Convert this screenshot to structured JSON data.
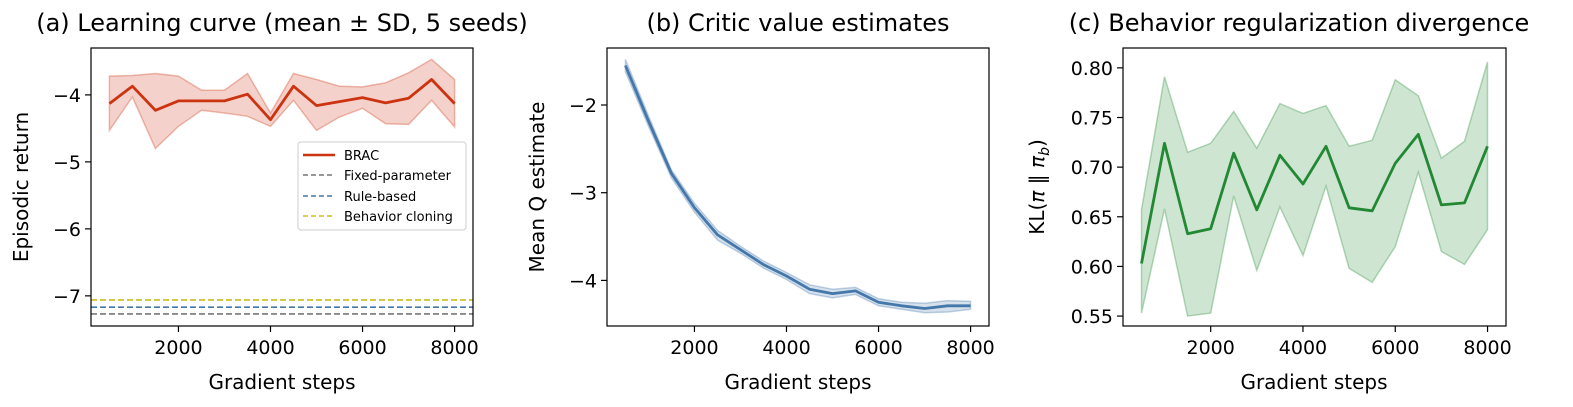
{
  "chart_data": [
    {
      "type": "line",
      "title": "(a) Learning curve (mean ± SD, 5 seeds)",
      "xlabel": "Gradient steps",
      "ylabel": "Episodic return",
      "xlim": [
        100,
        8400
      ],
      "ylim": [
        -7.45,
        -3.3
      ],
      "xticks": [
        2000,
        4000,
        6000,
        8000
      ],
      "xtick_labels": [
        "2000",
        "4000",
        "6000",
        "8000"
      ],
      "yticks": [
        -7,
        -6,
        -5,
        -4
      ],
      "ytick_labels": [
        "−7",
        "−6",
        "−5",
        "−4"
      ],
      "grid": false,
      "legend_position": "center-right",
      "x": [
        500,
        1000,
        1500,
        2000,
        2500,
        3000,
        3500,
        4000,
        4500,
        5000,
        5500,
        6000,
        6500,
        7000,
        7500,
        8000
      ],
      "series": [
        {
          "name": "BRAC",
          "color": "#cc3311",
          "style": "solid",
          "values": [
            -4.13,
            -3.87,
            -4.23,
            -4.09,
            -4.09,
            -4.09,
            -3.99,
            -4.37,
            -3.87,
            -4.16,
            -4.1,
            -4.04,
            -4.12,
            -4.05,
            -3.77,
            -4.13
          ],
          "band_upper": [
            -3.72,
            -3.71,
            -3.68,
            -3.72,
            -3.93,
            -3.93,
            -3.68,
            -4.27,
            -3.68,
            -3.77,
            -3.87,
            -3.88,
            -3.82,
            -3.67,
            -3.47,
            -3.77
          ],
          "band_lower": [
            -4.53,
            -4.03,
            -4.8,
            -4.47,
            -4.23,
            -4.27,
            -4.32,
            -4.47,
            -4.08,
            -4.53,
            -4.33,
            -4.2,
            -4.43,
            -4.44,
            -4.08,
            -4.48
          ]
        },
        {
          "name": "Fixed-parameter",
          "color": "#777777",
          "style": "dashed",
          "hline": -7.27
        },
        {
          "name": "Rule-based",
          "color": "#4477aa",
          "style": "dashed",
          "hline": -7.17
        },
        {
          "name": "Behavior cloning",
          "color": "#ccbb22",
          "style": "dashed",
          "hline": -7.06
        }
      ]
    },
    {
      "type": "line",
      "title": "(b) Critic value estimates",
      "xlabel": "Gradient steps",
      "ylabel": "Mean Q estimate",
      "xlim": [
        100,
        8400
      ],
      "ylim": [
        -4.52,
        -1.35
      ],
      "xticks": [
        2000,
        4000,
        6000,
        8000
      ],
      "xtick_labels": [
        "2000",
        "4000",
        "6000",
        "8000"
      ],
      "yticks": [
        -4,
        -3,
        -2
      ],
      "ytick_labels": [
        "−4",
        "−3",
        "−2"
      ],
      "grid": false,
      "x": [
        500,
        1000,
        1500,
        2000,
        2500,
        3000,
        3500,
        4000,
        4500,
        5000,
        5500,
        6000,
        6500,
        7000,
        7500,
        8000
      ],
      "series": [
        {
          "name": "",
          "color": "#4477aa",
          "style": "solid",
          "values": [
            -1.55,
            -2.18,
            -2.78,
            -3.17,
            -3.48,
            -3.65,
            -3.82,
            -3.95,
            -4.1,
            -4.15,
            -4.12,
            -4.25,
            -4.29,
            -4.32,
            -4.29,
            -4.29
          ],
          "band_upper": [
            -1.48,
            -2.12,
            -2.74,
            -3.12,
            -3.43,
            -3.61,
            -3.78,
            -3.91,
            -4.05,
            -4.1,
            -4.08,
            -4.21,
            -4.25,
            -4.26,
            -4.23,
            -4.24
          ],
          "band_lower": [
            -1.62,
            -2.24,
            -2.83,
            -3.22,
            -3.54,
            -3.69,
            -3.86,
            -3.99,
            -4.15,
            -4.2,
            -4.16,
            -4.29,
            -4.33,
            -4.37,
            -4.36,
            -4.33
          ]
        }
      ]
    },
    {
      "type": "line",
      "title": "(c) Behavior regularization divergence",
      "xlabel": "Gradient steps",
      "ylabel": "KL(π ‖ π_b)",
      "ylabel_main": "KL(",
      "ylabel_pi": "π",
      "ylabel_sep": " ‖ ",
      "ylabel_sub": "b",
      "ylabel_close": ")",
      "xlim": [
        100,
        8400
      ],
      "ylim": [
        0.54,
        0.82
      ],
      "xticks": [
        2000,
        4000,
        6000,
        8000
      ],
      "xtick_labels": [
        "2000",
        "4000",
        "6000",
        "8000"
      ],
      "yticks": [
        0.55,
        0.6,
        0.65,
        0.7,
        0.75,
        0.8
      ],
      "ytick_labels": [
        "0.55",
        "0.60",
        "0.65",
        "0.70",
        "0.75",
        "0.80"
      ],
      "grid": false,
      "x": [
        500,
        1000,
        1500,
        2000,
        2500,
        3000,
        3500,
        4000,
        4500,
        5000,
        5500,
        6000,
        6500,
        7000,
        7500,
        8000
      ],
      "series": [
        {
          "name": "",
          "color": "#228833",
          "style": "solid",
          "values": [
            0.603,
            0.724,
            0.633,
            0.638,
            0.714,
            0.657,
            0.712,
            0.683,
            0.721,
            0.659,
            0.656,
            0.704,
            0.733,
            0.662,
            0.664,
            0.721
          ],
          "band_upper": [
            0.657,
            0.791,
            0.715,
            0.724,
            0.756,
            0.719,
            0.764,
            0.754,
            0.762,
            0.721,
            0.727,
            0.788,
            0.772,
            0.709,
            0.726,
            0.806
          ],
          "band_lower": [
            0.553,
            0.658,
            0.55,
            0.553,
            0.671,
            0.596,
            0.66,
            0.611,
            0.681,
            0.598,
            0.584,
            0.62,
            0.695,
            0.615,
            0.602,
            0.637
          ]
        }
      ]
    }
  ]
}
